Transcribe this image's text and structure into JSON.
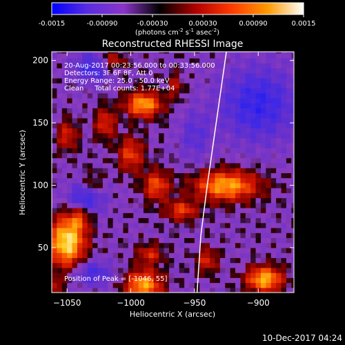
{
  "chart_data": {
    "type": "heatmap",
    "title": "Reconstructed RHESSI Image",
    "xlabel": "Heliocentric X (arcsec)",
    "ylabel": "Heliocentric Y (arcsec)",
    "xlim": [
      -1062,
      -872
    ],
    "ylim": [
      14,
      207
    ],
    "x_ticks": [
      -1050,
      -1000,
      -950,
      -900
    ],
    "y_ticks": [
      50,
      100,
      150,
      200
    ],
    "colorbar": {
      "label_main": "(photons cm",
      "label_sup1": "-2",
      "label_mid1": " s",
      "label_sup2": "-1",
      "label_mid2": " asec",
      "label_sup3": "-2",
      "label_end": ")",
      "range": [
        -0.0015,
        0.0015
      ],
      "ticks": [
        "-0.0015",
        "-0.00090",
        "-0.00030",
        "0.00030",
        "0.00090",
        "0.0015"
      ],
      "tick_values": [
        -0.0015,
        -0.0009,
        -0.0003,
        0.0003,
        0.0009,
        0.0015
      ],
      "colors": [
        "#0000ff",
        "#5a2de0",
        "#8b34c8",
        "#000000",
        "#b00000",
        "#ff3a00",
        "#ff9a00",
        "#ffffff"
      ]
    },
    "annotations": [
      "20-Aug-2017 00:23:56.000 to 00:33:56.000",
      "Detectors: 3F 6F 8F, Att 0",
      "Energy Range: 25.0 - 50.0 keV",
      "Clean     Total counts: 1.77E+04",
      "Position of Peak = [-1046, 55]"
    ],
    "limb_curve": [
      [
        -948,
        14
      ],
      [
        -945,
        60
      ],
      [
        -940,
        100
      ],
      [
        -933,
        150
      ],
      [
        -925,
        207
      ]
    ],
    "blobs": [
      {
        "x": -1050,
        "y": 55,
        "sx": 14,
        "sy": 20,
        "a": 1.05
      },
      {
        "x": -1040,
        "y": 75,
        "sx": 8,
        "sy": 10,
        "a": 0.45
      },
      {
        "x": -990,
        "y": 165,
        "sx": 14,
        "sy": 10,
        "a": 0.85
      },
      {
        "x": -1000,
        "y": 125,
        "sx": 10,
        "sy": 14,
        "a": 0.55
      },
      {
        "x": -980,
        "y": 100,
        "sx": 10,
        "sy": 12,
        "a": 0.6
      },
      {
        "x": -1020,
        "y": 150,
        "sx": 8,
        "sy": 12,
        "a": 0.5
      },
      {
        "x": -1050,
        "y": 140,
        "sx": 8,
        "sy": 12,
        "a": 0.45
      },
      {
        "x": -925,
        "y": 100,
        "sx": 25,
        "sy": 12,
        "a": 0.85
      },
      {
        "x": -960,
        "y": 80,
        "sx": 12,
        "sy": 8,
        "a": 0.55
      },
      {
        "x": -990,
        "y": 20,
        "sx": 14,
        "sy": 12,
        "a": 0.85
      },
      {
        "x": -985,
        "y": 45,
        "sx": 10,
        "sy": 8,
        "a": 0.45
      },
      {
        "x": -895,
        "y": 25,
        "sx": 14,
        "sy": 10,
        "a": 0.9
      },
      {
        "x": -940,
        "y": 40,
        "sx": 8,
        "sy": 10,
        "a": 0.45
      },
      {
        "x": -1015,
        "y": 200,
        "sx": 10,
        "sy": 8,
        "a": 0.45
      },
      {
        "x": -1060,
        "y": 20,
        "sx": 6,
        "sy": 6,
        "a": 0.4
      },
      {
        "x": -965,
        "y": 180,
        "sx": 6,
        "sy": 10,
        "a": 0.35
      },
      {
        "x": -1030,
        "y": 100,
        "sx": 8,
        "sy": 10,
        "a": 0.35
      }
    ],
    "negatives": [
      {
        "x": -1035,
        "y": 90,
        "sx": 14,
        "sy": 12,
        "a": 0.6
      },
      {
        "x": -1030,
        "y": 195,
        "sx": 15,
        "sy": 12,
        "a": 0.5
      },
      {
        "x": -900,
        "y": 165,
        "sx": 30,
        "sy": 30,
        "a": 0.55
      },
      {
        "x": -1030,
        "y": 30,
        "sx": 15,
        "sy": 10,
        "a": 0.45
      },
      {
        "x": -950,
        "y": 140,
        "sx": 12,
        "sy": 20,
        "a": 0.3
      }
    ]
  },
  "footer_date": "10-Dec-2017 04:24"
}
